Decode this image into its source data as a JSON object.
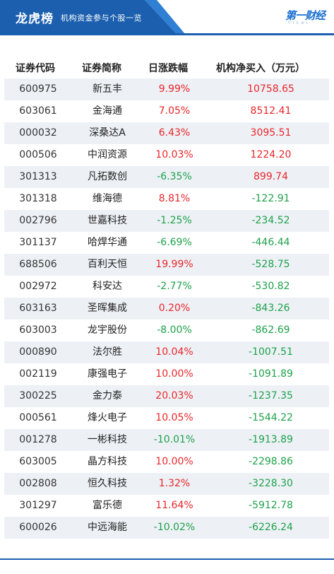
{
  "header": {
    "title": "龙虎榜",
    "subtitle": "机构资金参与个股一览",
    "logo": "第一财经",
    "logo_sub": "Y I C A I",
    "band_color": "#1b5fae",
    "accent_color": "#2f7fd3"
  },
  "table": {
    "columns": [
      "证券代码",
      "证券简称",
      "日涨跌幅",
      "机构净买入（万元）"
    ],
    "up_color": "#e8262a",
    "down_color": "#1ea14a",
    "rows": [
      {
        "code": "600975",
        "name": "新五丰",
        "pct": "9.99%",
        "buy": "10758.65",
        "pct_dir": "up",
        "buy_dir": "up"
      },
      {
        "code": "603061",
        "name": "金海通",
        "pct": "7.05%",
        "buy": "8512.41",
        "pct_dir": "up",
        "buy_dir": "up"
      },
      {
        "code": "000032",
        "name": "深桑达A",
        "pct": "6.43%",
        "buy": "3095.51",
        "pct_dir": "up",
        "buy_dir": "up"
      },
      {
        "code": "000506",
        "name": "中润资源",
        "pct": "10.03%",
        "buy": "1224.20",
        "pct_dir": "up",
        "buy_dir": "up"
      },
      {
        "code": "301313",
        "name": "凡拓数创",
        "pct": "-6.35%",
        "buy": "899.74",
        "pct_dir": "down",
        "buy_dir": "up"
      },
      {
        "code": "301318",
        "name": "维海德",
        "pct": "8.81%",
        "buy": "-122.91",
        "pct_dir": "up",
        "buy_dir": "down"
      },
      {
        "code": "002796",
        "name": "世嘉科技",
        "pct": "-1.25%",
        "buy": "-234.52",
        "pct_dir": "down",
        "buy_dir": "down"
      },
      {
        "code": "301137",
        "name": "哈焊华通",
        "pct": "-6.69%",
        "buy": "-446.44",
        "pct_dir": "down",
        "buy_dir": "down"
      },
      {
        "code": "688506",
        "name": "百利天恒",
        "pct": "19.99%",
        "buy": "-528.75",
        "pct_dir": "up",
        "buy_dir": "down"
      },
      {
        "code": "002972",
        "name": "科安达",
        "pct": "-2.77%",
        "buy": "-530.82",
        "pct_dir": "down",
        "buy_dir": "down"
      },
      {
        "code": "603163",
        "name": "圣晖集成",
        "pct": "0.20%",
        "buy": "-843.26",
        "pct_dir": "up",
        "buy_dir": "down"
      },
      {
        "code": "603003",
        "name": "龙宇股份",
        "pct": "-8.00%",
        "buy": "-862.69",
        "pct_dir": "down",
        "buy_dir": "down"
      },
      {
        "code": "000890",
        "name": "法尔胜",
        "pct": "10.04%",
        "buy": "-1007.51",
        "pct_dir": "up",
        "buy_dir": "down"
      },
      {
        "code": "002119",
        "name": "康强电子",
        "pct": "10.00%",
        "buy": "-1091.89",
        "pct_dir": "up",
        "buy_dir": "down"
      },
      {
        "code": "300225",
        "name": "金力泰",
        "pct": "20.03%",
        "buy": "-1237.35",
        "pct_dir": "up",
        "buy_dir": "down"
      },
      {
        "code": "000561",
        "name": "烽火电子",
        "pct": "10.05%",
        "buy": "-1544.22",
        "pct_dir": "up",
        "buy_dir": "down"
      },
      {
        "code": "001278",
        "name": "一彬科技",
        "pct": "-10.01%",
        "buy": "-1913.89",
        "pct_dir": "down",
        "buy_dir": "down"
      },
      {
        "code": "603005",
        "name": "晶方科技",
        "pct": "10.00%",
        "buy": "-2298.86",
        "pct_dir": "up",
        "buy_dir": "down"
      },
      {
        "code": "002808",
        "name": "恒久科技",
        "pct": "1.32%",
        "buy": "-3228.30",
        "pct_dir": "up",
        "buy_dir": "down"
      },
      {
        "code": "301297",
        "name": "富乐德",
        "pct": "11.64%",
        "buy": "-5912.78",
        "pct_dir": "up",
        "buy_dir": "down"
      },
      {
        "code": "600026",
        "name": "中远海能",
        "pct": "-10.02%",
        "buy": "-6226.24",
        "pct_dir": "down",
        "buy_dir": "down"
      }
    ]
  }
}
